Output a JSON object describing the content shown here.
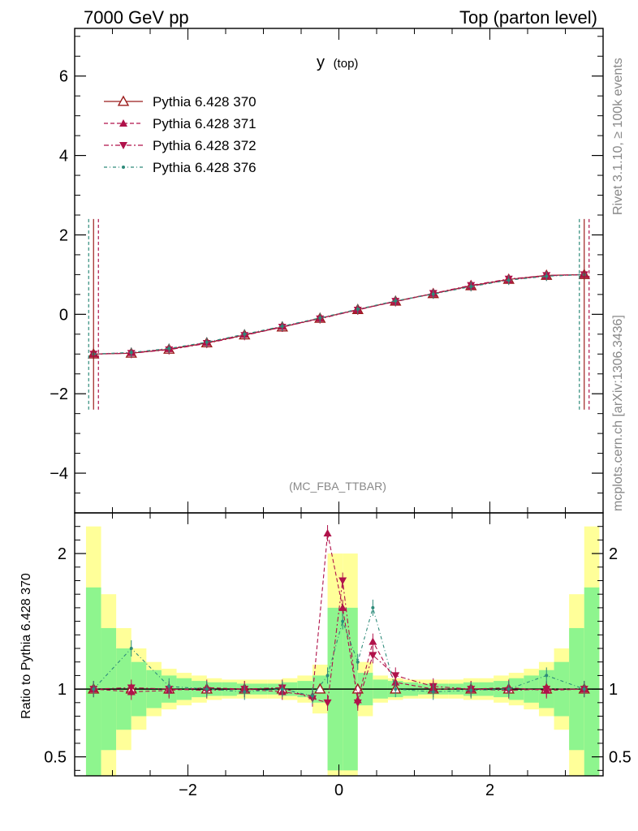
{
  "header": {
    "left": "7000 GeV pp",
    "right": "Top (parton level)"
  },
  "plot_title": "y",
  "plot_title_sub": "(top)",
  "side_text_top": "Rivet 3.1.10, ≥ 100k events",
  "side_text_bottom": "mcplots.cern.ch [arXiv:1306.3436]",
  "analysis_tag": "(MC_FBA_TTBAR)",
  "ratio_ylabel": "Ratio to Pythia 6.428 370",
  "colors": {
    "s370": "#9b1c1c",
    "s371": "#b0124a",
    "s372": "#b0124a",
    "s376": "#2e8b7a",
    "band_inner": "#8ef58e",
    "band_outer": "#ffff99"
  },
  "chart_data": [
    {
      "type": "scatter",
      "panel": "main",
      "xlim": [
        -3.5,
        3.5
      ],
      "ylim": [
        -5,
        7.2
      ],
      "yticks": [
        -4,
        -2,
        0,
        2,
        4,
        6
      ],
      "yticklabels": [
        "−4",
        "−2",
        "0",
        "2",
        "4",
        "6"
      ],
      "legend_position": "top-left",
      "series": [
        {
          "name": "Pythia 6.428 370",
          "marker": "open-triangle-up",
          "line": "solid",
          "x": [
            -3.25,
            -2.75,
            -2.25,
            -1.75,
            -1.25,
            -0.75,
            -0.25,
            0.25,
            0.75,
            1.25,
            1.75,
            2.25,
            2.75,
            3.25
          ],
          "y": [
            -1.0,
            -0.98,
            -0.88,
            -0.72,
            -0.52,
            -0.32,
            -0.1,
            0.12,
            0.33,
            0.52,
            0.72,
            0.88,
            0.98,
            1.0
          ]
        },
        {
          "name": "Pythia 6.428 371",
          "marker": "filled-triangle-up",
          "line": "dashed",
          "x": [
            -3.25,
            -2.75,
            -2.25,
            -1.75,
            -1.25,
            -0.75,
            -0.25,
            0.25,
            0.75,
            1.25,
            1.75,
            2.25,
            2.75,
            3.25
          ],
          "y": [
            -1.0,
            -0.97,
            -0.87,
            -0.71,
            -0.51,
            -0.31,
            -0.1,
            0.12,
            0.32,
            0.52,
            0.71,
            0.87,
            0.97,
            1.0
          ]
        },
        {
          "name": "Pythia 6.428 372",
          "marker": "filled-triangle-down",
          "line": "dashdot",
          "x": [
            -3.25,
            -2.75,
            -2.25,
            -1.75,
            -1.25,
            -0.75,
            -0.25,
            0.25,
            0.75,
            1.25,
            1.75,
            2.25,
            2.75,
            3.25
          ],
          "y": [
            -1.0,
            -0.98,
            -0.89,
            -0.73,
            -0.53,
            -0.32,
            -0.11,
            0.11,
            0.33,
            0.53,
            0.73,
            0.89,
            0.98,
            1.0
          ]
        },
        {
          "name": "Pythia 6.428 376",
          "marker": "dot",
          "line": "dashdotted-fine",
          "x": [
            -3.25,
            -2.75,
            -2.25,
            -1.75,
            -1.25,
            -0.75,
            -0.25,
            0.25,
            0.75,
            1.25,
            1.75,
            2.25,
            2.75,
            3.25
          ],
          "y": [
            -1.0,
            -0.96,
            -0.86,
            -0.7,
            -0.5,
            -0.3,
            -0.09,
            0.13,
            0.34,
            0.51,
            0.7,
            0.86,
            0.96,
            1.0
          ]
        }
      ],
      "endpoint_error_bars": {
        "x": [
          -3.25,
          3.25
        ],
        "low": -2.4,
        "high": 2.4
      }
    },
    {
      "type": "scatter",
      "panel": "ratio",
      "ylabel": "Ratio to Pythia 6.428 370",
      "xlim": [
        -3.5,
        3.5
      ],
      "ylim": [
        0.36,
        2.3
      ],
      "xticks": [
        -2,
        0,
        2
      ],
      "xticklabels": [
        "−2",
        "0",
        "2"
      ],
      "yticks": [
        0.5,
        1,
        2
      ],
      "yticklabels": [
        "0.5",
        "1",
        "2"
      ],
      "series": [
        {
          "name": "Pythia 6.428 371",
          "x": [
            -3.25,
            -2.75,
            -2.25,
            -1.75,
            -1.25,
            -0.75,
            -0.35,
            -0.15,
            0.05,
            0.25,
            0.45,
            0.75,
            1.25,
            1.75,
            2.25,
            2.75,
            3.25
          ],
          "y": [
            1.0,
            0.98,
            0.99,
            1.01,
            1.0,
            0.98,
            0.95,
            2.15,
            1.6,
            0.92,
            1.35,
            1.05,
            1.0,
            1.0,
            1.01,
            0.99,
            1.0
          ]
        },
        {
          "name": "Pythia 6.428 372",
          "x": [
            -3.25,
            -2.75,
            -2.25,
            -1.75,
            -1.25,
            -0.75,
            -0.35,
            -0.15,
            0.05,
            0.25,
            0.45,
            0.75,
            1.25,
            1.75,
            2.25,
            2.75,
            3.25
          ],
          "y": [
            1.0,
            1.01,
            1.0,
            0.99,
            1.0,
            1.01,
            0.93,
            0.9,
            1.8,
            0.9,
            1.25,
            1.1,
            1.02,
            1.0,
            0.99,
            1.0,
            1.0
          ]
        },
        {
          "name": "Pythia 6.428 376",
          "x": [
            -3.25,
            -2.75,
            -2.25,
            -1.75,
            -1.25,
            -0.75,
            -0.35,
            -0.15,
            0.05,
            0.25,
            0.45,
            0.75,
            1.25,
            1.75,
            2.25,
            2.75,
            3.25
          ],
          "y": [
            1.0,
            1.3,
            1.02,
            1.0,
            0.98,
            1.0,
            0.95,
            1.1,
            1.5,
            1.2,
            1.6,
            1.0,
            0.98,
            0.99,
            1.0,
            1.1,
            1.0
          ]
        }
      ],
      "band": {
        "x_edges": [
          -3.35,
          -3.15,
          -2.95,
          -2.75,
          -2.55,
          -2.35,
          -2.15,
          -1.95,
          -1.75,
          -1.55,
          -1.35,
          -1.15,
          -0.95,
          -0.75,
          -0.55,
          -0.35,
          -0.15,
          0.05,
          0.25,
          0.45,
          0.65,
          0.85,
          1.05,
          1.25,
          1.45,
          1.65,
          1.85,
          2.05,
          2.25,
          2.45,
          2.65,
          2.85,
          3.05,
          3.25,
          3.45
        ],
        "inner": [
          0.75,
          0.45,
          0.3,
          0.2,
          0.14,
          0.1,
          0.08,
          0.06,
          0.05,
          0.05,
          0.04,
          0.04,
          0.04,
          0.05,
          0.06,
          0.1,
          0.6,
          0.6,
          0.12,
          0.07,
          0.06,
          0.05,
          0.04,
          0.04,
          0.04,
          0.05,
          0.05,
          0.06,
          0.08,
          0.1,
          0.14,
          0.2,
          0.45,
          0.75
        ],
        "outer": [
          1.2,
          0.7,
          0.45,
          0.3,
          0.2,
          0.15,
          0.12,
          0.1,
          0.08,
          0.07,
          0.07,
          0.07,
          0.07,
          0.08,
          0.1,
          0.18,
          1.0,
          1.0,
          0.2,
          0.1,
          0.08,
          0.07,
          0.07,
          0.07,
          0.07,
          0.08,
          0.08,
          0.1,
          0.12,
          0.15,
          0.2,
          0.3,
          0.7,
          1.2
        ]
      }
    }
  ]
}
